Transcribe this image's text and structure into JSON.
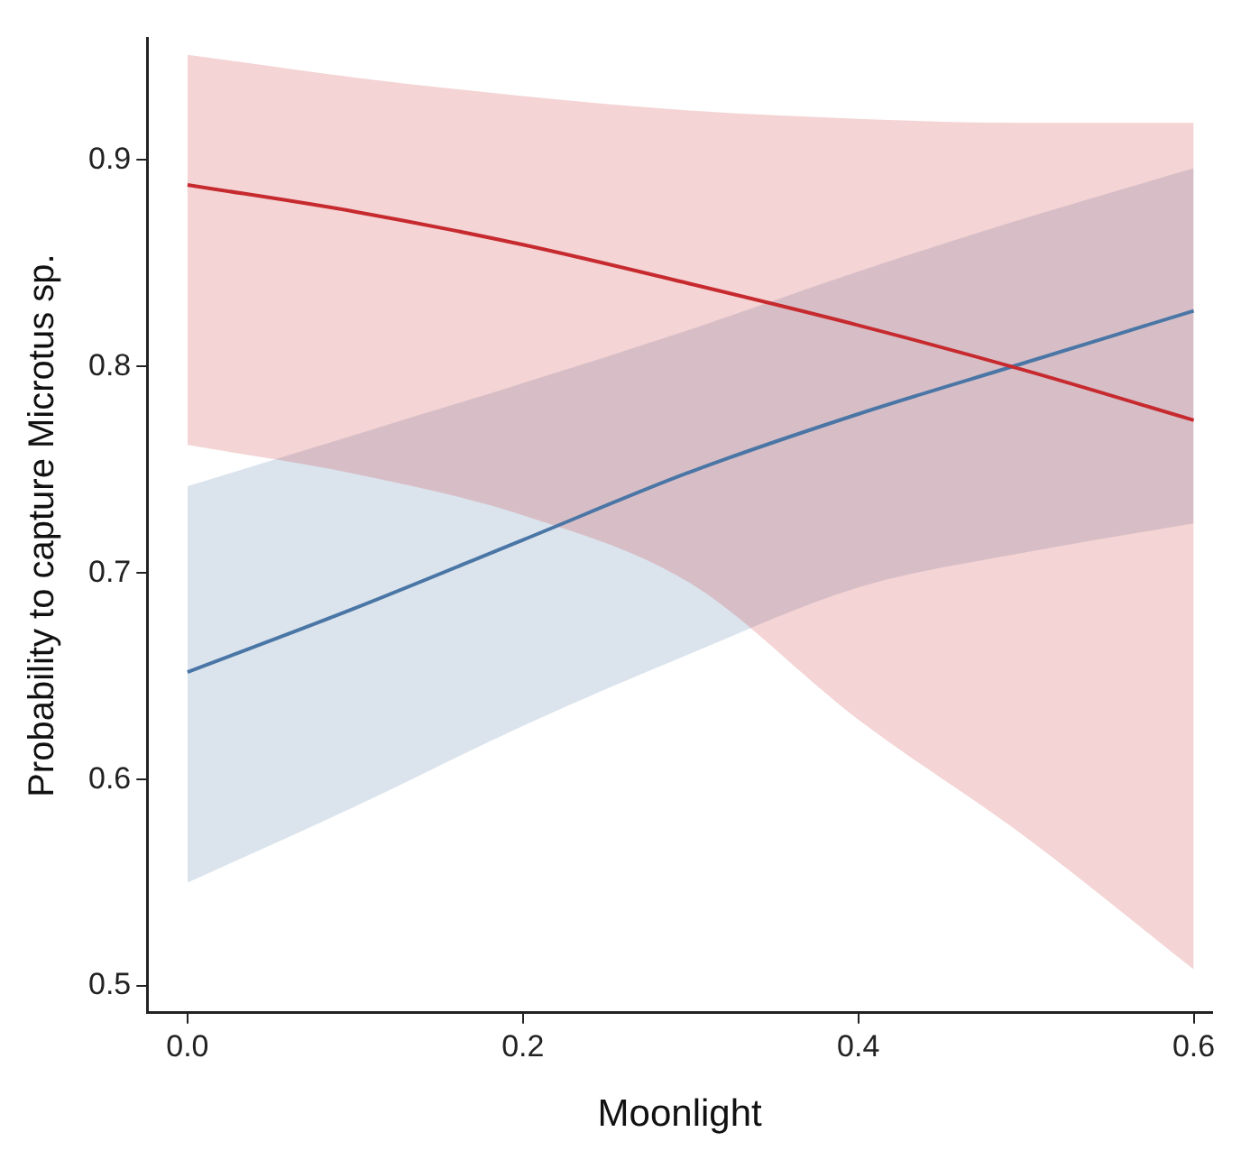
{
  "chart_data": {
    "type": "line",
    "xlabel": "Moonlight",
    "ylabel": "Probability to capture Microtus sp.",
    "x": [
      0,
      0.1,
      0.2,
      0.3,
      0.4,
      0.5,
      0.6
    ],
    "series": [
      {
        "color": "#c62a2f",
        "values": [
          0.888,
          0.875,
          0.859,
          0.84,
          0.82,
          0.798,
          0.774
        ],
        "lower": [
          0.762,
          0.748,
          0.728,
          0.695,
          0.629,
          0.572,
          0.508
        ],
        "upper": [
          0.951,
          0.94,
          0.931,
          0.924,
          0.92,
          0.918,
          0.918
        ]
      },
      {
        "color": "#4a76a6",
        "values": [
          0.652,
          0.683,
          0.716,
          0.749,
          0.777,
          0.802,
          0.827
        ],
        "lower": [
          0.55,
          0.587,
          0.626,
          0.661,
          0.693,
          0.71,
          0.724
        ],
        "upper": [
          0.742,
          0.767,
          0.792,
          0.818,
          0.846,
          0.872,
          0.896
        ]
      }
    ],
    "xlim": [
      -0.024,
      0.611
    ],
    "ylim": [
      0.487,
      0.959
    ],
    "xticks": [
      {
        "value": 0,
        "label": "0.0"
      },
      0.2,
      0.4,
      0.6
    ],
    "yticks": [
      0.5,
      0.6,
      0.7,
      0.8,
      0.9
    ],
    "grid": false,
    "marker": "none",
    "line_style": "solid"
  }
}
